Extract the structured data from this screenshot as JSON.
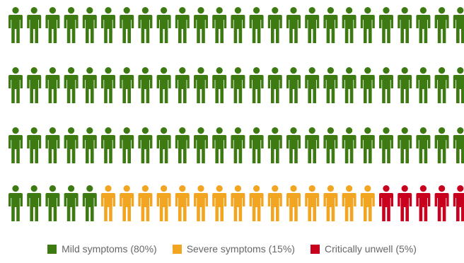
{
  "chart_data": {
    "type": "pictogram",
    "total_icons": 100,
    "columns": 25,
    "rows": 4,
    "icon_name": "person-icon",
    "series": [
      {
        "name": "Mild symptoms (80%)",
        "value": 80,
        "color": "#3d7a12"
      },
      {
        "name": "Severe symptoms (15%)",
        "value": 15,
        "color": "#f2a521"
      },
      {
        "name": "Critically unwell (5%)",
        "value": 5,
        "color": "#c8001e"
      }
    ],
    "legend_position": "bottom-center"
  }
}
